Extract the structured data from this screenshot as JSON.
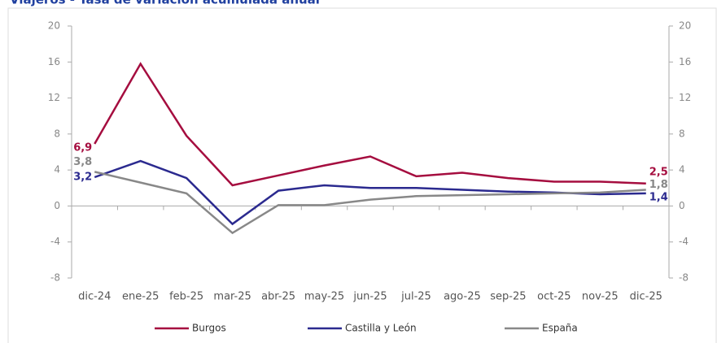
{
  "chart_data": {
    "type": "line",
    "title": "Viajeros - Tasa de variación acumulada anual",
    "categories": [
      "dic-24",
      "ene-25",
      "feb-25",
      "mar-25",
      "abr-25",
      "may-25",
      "jun-25",
      "jul-25",
      "ago-25",
      "sep-25",
      "oct-25",
      "nov-25",
      "dic-25"
    ],
    "series": [
      {
        "name": "Burgos",
        "color": "#a50d3f",
        "values": [
          6.9,
          15.8,
          7.8,
          2.3,
          3.4,
          4.5,
          5.5,
          3.3,
          3.7,
          3.1,
          2.7,
          2.7,
          2.5
        ],
        "value_labels": [
          "6,9",
          null,
          null,
          null,
          null,
          null,
          null,
          null,
          null,
          null,
          null,
          null,
          "2,5"
        ]
      },
      {
        "name": "Castilla y León",
        "color": "#2b2a8f",
        "values": [
          3.2,
          5.0,
          3.1,
          -2.0,
          1.7,
          2.3,
          2.0,
          2.0,
          1.8,
          1.6,
          1.5,
          1.3,
          1.4
        ],
        "value_labels": [
          "3,2",
          null,
          null,
          null,
          null,
          null,
          null,
          null,
          null,
          null,
          null,
          null,
          "1,4"
        ]
      },
      {
        "name": "España",
        "color": "#888888",
        "values": [
          3.8,
          2.6,
          1.4,
          -3.0,
          0.1,
          0.1,
          0.7,
          1.1,
          1.2,
          1.3,
          1.4,
          1.5,
          1.8
        ],
        "value_labels": [
          "3,8",
          null,
          null,
          null,
          null,
          null,
          null,
          null,
          null,
          null,
          null,
          null,
          "1,8"
        ]
      }
    ],
    "ylim": [
      -8,
      20
    ],
    "yticks": [
      -8,
      -4,
      0,
      4,
      8,
      12,
      16,
      20
    ],
    "y2lim": [
      -8,
      20
    ],
    "y2ticks": [
      -8,
      -4,
      0,
      4,
      8,
      12,
      16,
      20
    ],
    "legend": "bottom"
  }
}
